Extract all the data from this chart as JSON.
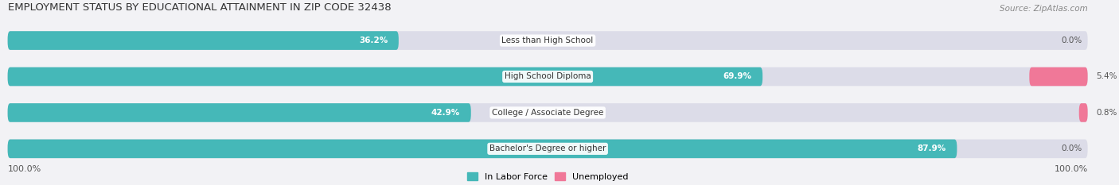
{
  "title": "EMPLOYMENT STATUS BY EDUCATIONAL ATTAINMENT IN ZIP CODE 32438",
  "source": "Source: ZipAtlas.com",
  "categories": [
    "Less than High School",
    "High School Diploma",
    "College / Associate Degree",
    "Bachelor's Degree or higher"
  ],
  "in_labor_force": [
    36.2,
    69.9,
    42.9,
    87.9
  ],
  "unemployed": [
    0.0,
    5.4,
    0.8,
    0.0
  ],
  "color_labor": "#45b8b8",
  "color_unemployed": "#f07898",
  "color_bg_bar": "#dcdce8",
  "color_bg_figure": "#f2f2f5",
  "max_value": 100.0,
  "legend_labor": "In Labor Force",
  "legend_unemployed": "Unemployed",
  "left_label": "100.0%",
  "right_label": "100.0%",
  "title_fontsize": 9.5,
  "source_fontsize": 7.5,
  "bar_label_fontsize": 7.5,
  "category_fontsize": 7.5,
  "legend_fontsize": 8,
  "axis_label_fontsize": 8
}
